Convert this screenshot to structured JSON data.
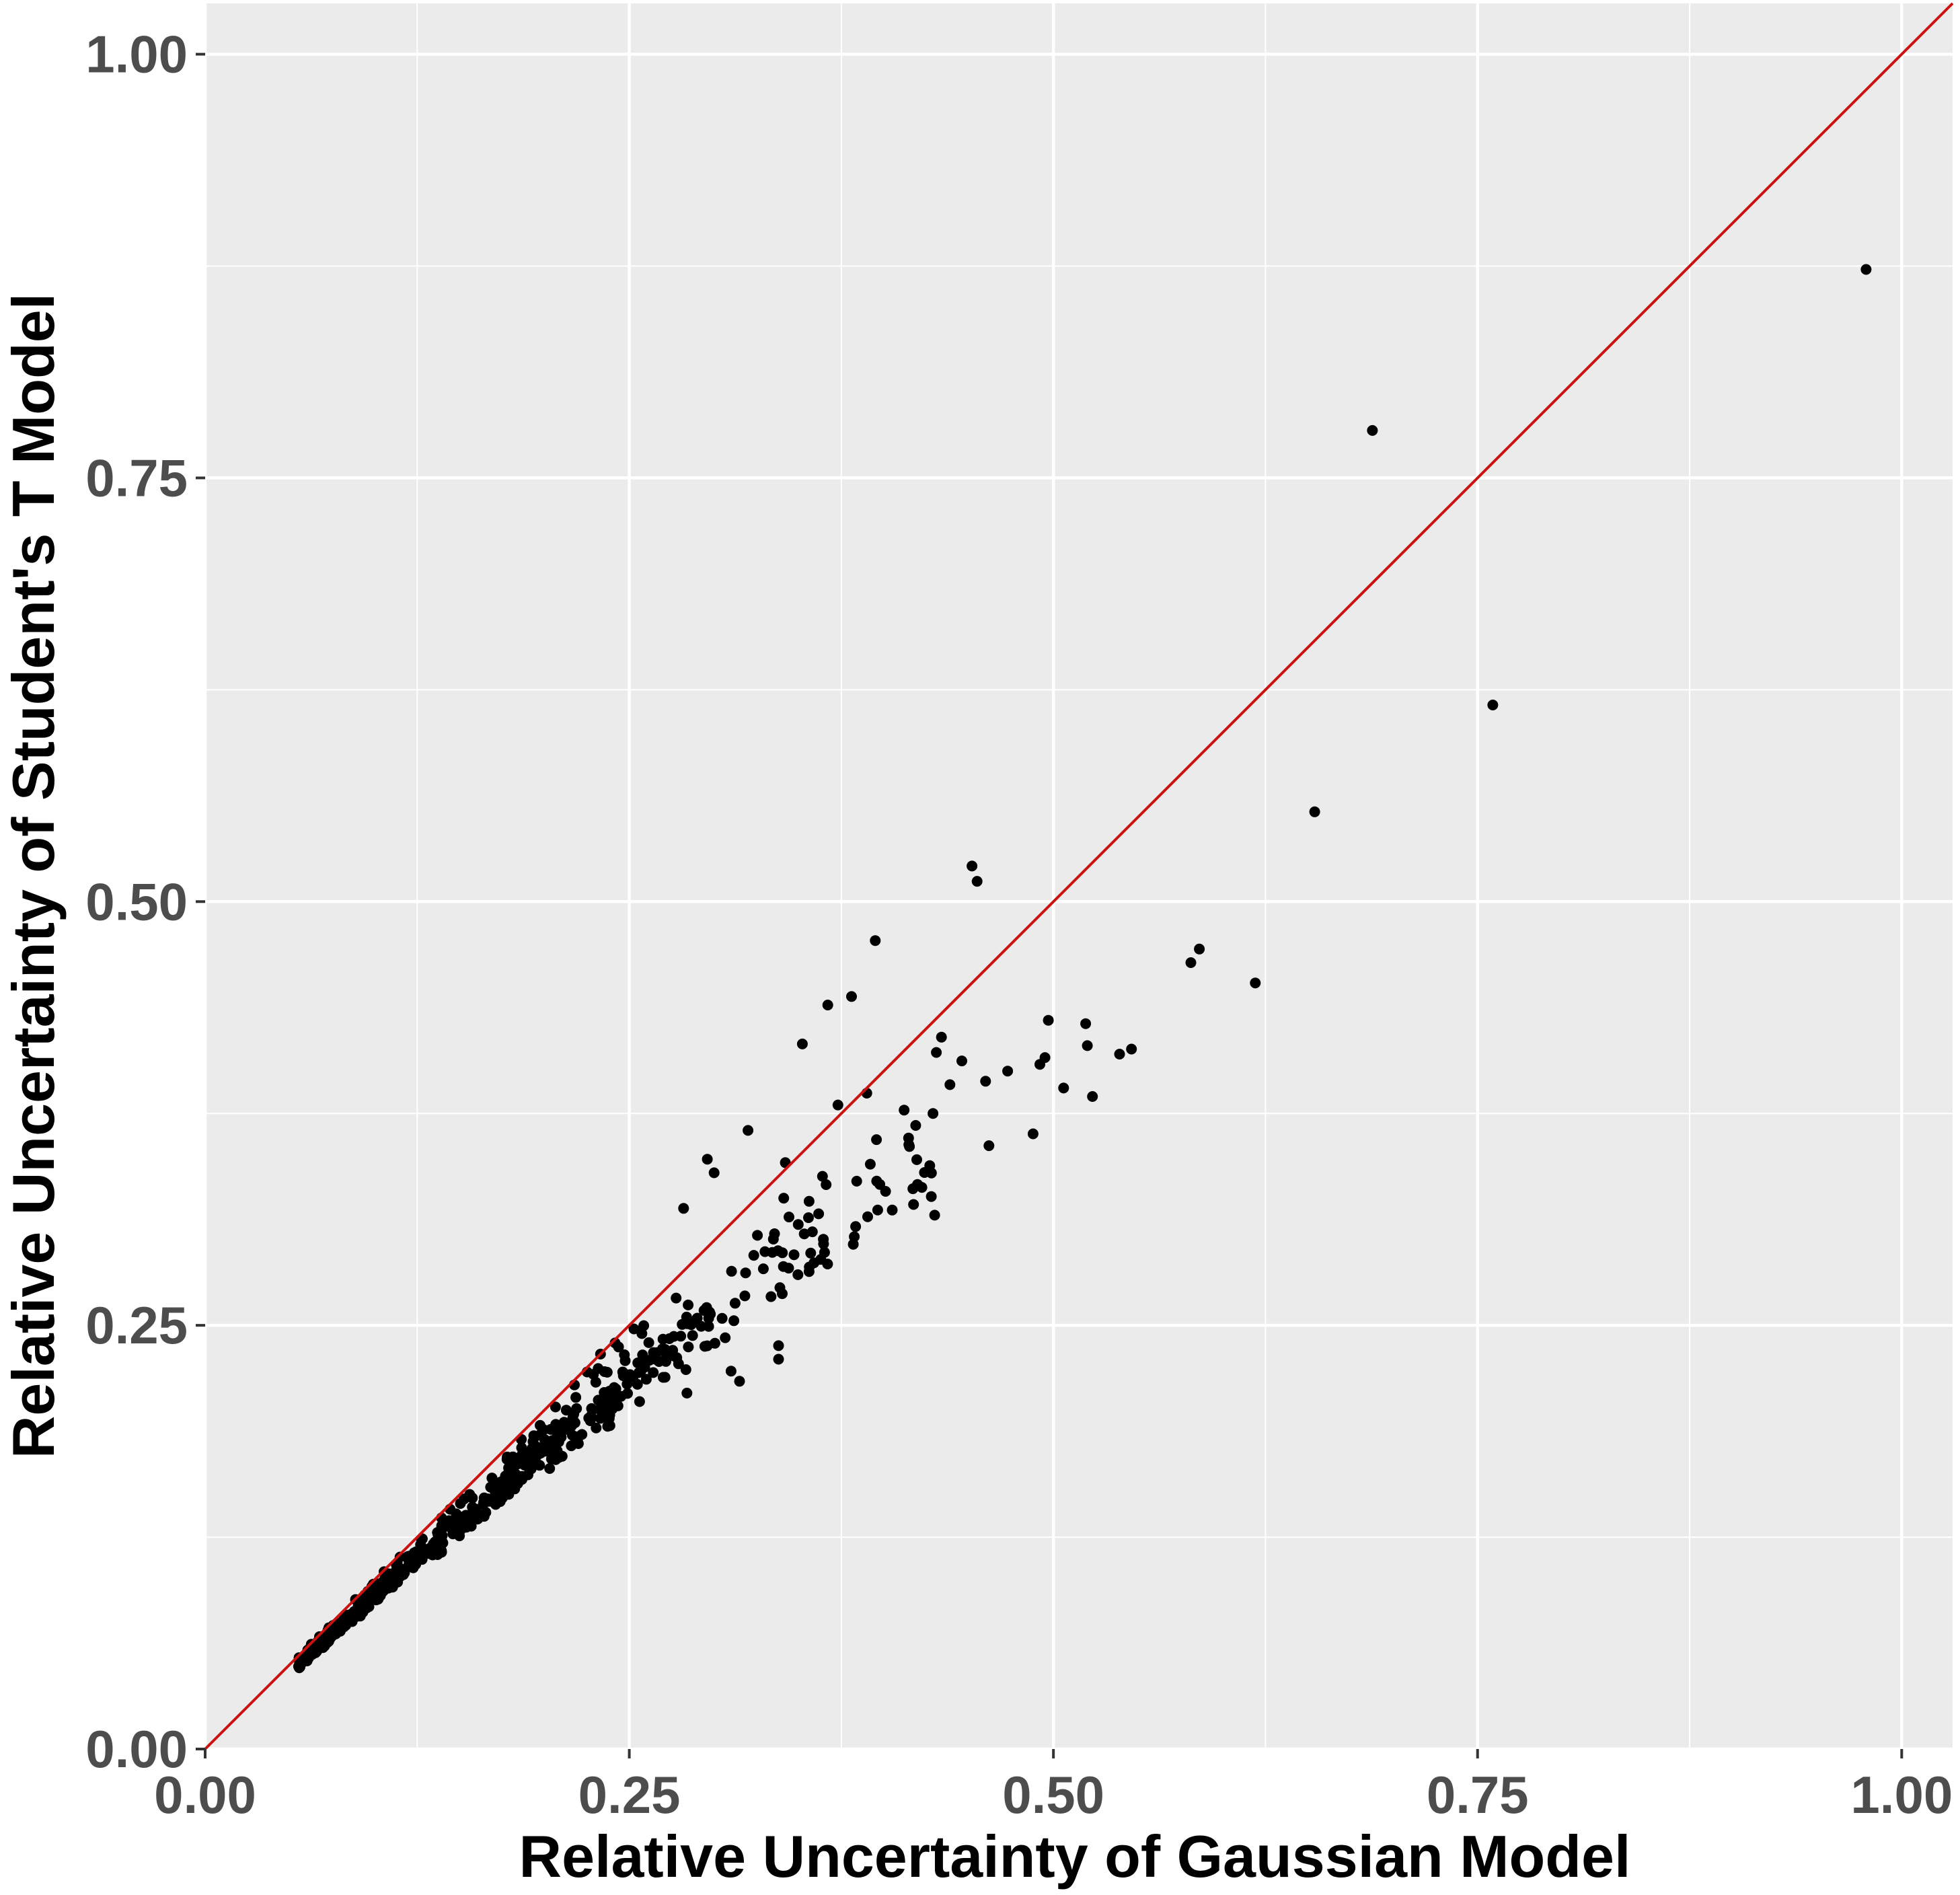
{
  "chart_data": {
    "type": "scatter",
    "xlabel": "Relative Uncertainty of Gaussian Model",
    "ylabel": "Relative Uncertainty of Student's T Model",
    "xlim": [
      0.0,
      1.03
    ],
    "ylim": [
      0.0,
      1.03
    ],
    "x_ticks": [
      "0.00",
      "0.25",
      "0.50",
      "0.75",
      "1.00"
    ],
    "y_ticks": [
      "0.00",
      "0.25",
      "0.50",
      "0.75",
      "1.00"
    ],
    "grid": true,
    "reference_line": {
      "type": "identity",
      "slope": 1,
      "intercept": 0,
      "color": "#cc1111"
    },
    "colors": {
      "panel": "#ebebeb",
      "grid": "#ffffff",
      "points": "#000000",
      "tick_text": "#4d4d4d"
    },
    "outliers": [
      [
        0.979,
        0.873
      ],
      [
        0.688,
        0.778
      ],
      [
        0.759,
        0.616
      ],
      [
        0.654,
        0.553
      ],
      [
        0.452,
        0.521
      ],
      [
        0.455,
        0.512
      ],
      [
        0.395,
        0.477
      ],
      [
        0.586,
        0.472
      ],
      [
        0.581,
        0.464
      ],
      [
        0.619,
        0.452
      ],
      [
        0.381,
        0.444
      ],
      [
        0.367,
        0.439
      ],
      [
        0.497,
        0.43
      ],
      [
        0.519,
        0.428
      ],
      [
        0.52,
        0.415
      ],
      [
        0.434,
        0.42
      ],
      [
        0.352,
        0.416
      ],
      [
        0.546,
        0.413
      ],
      [
        0.431,
        0.411
      ],
      [
        0.539,
        0.41
      ],
      [
        0.495,
        0.408
      ],
      [
        0.446,
        0.406
      ],
      [
        0.492,
        0.404
      ],
      [
        0.473,
        0.4
      ],
      [
        0.46,
        0.394
      ],
      [
        0.439,
        0.392
      ],
      [
        0.506,
        0.39
      ],
      [
        0.523,
        0.385
      ],
      [
        0.373,
        0.38
      ],
      [
        0.39,
        0.387
      ],
      [
        0.412,
        0.377
      ],
      [
        0.429,
        0.375
      ],
      [
        0.488,
        0.363
      ],
      [
        0.462,
        0.356
      ],
      [
        0.32,
        0.365
      ],
      [
        0.342,
        0.346
      ],
      [
        0.296,
        0.348
      ],
      [
        0.3,
        0.34
      ],
      [
        0.43,
        0.315
      ],
      [
        0.428,
        0.326
      ],
      [
        0.282,
        0.319
      ],
      [
        0.366,
        0.333
      ],
      [
        0.405,
        0.318
      ],
      [
        0.338,
        0.23
      ],
      [
        0.338,
        0.238
      ],
      [
        0.31,
        0.223
      ],
      [
        0.284,
        0.21
      ],
      [
        0.315,
        0.217
      ]
    ]
  }
}
